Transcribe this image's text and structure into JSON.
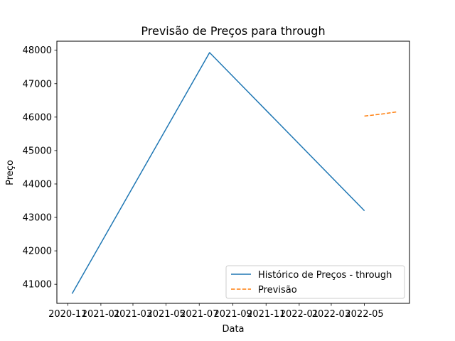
{
  "chart_data": {
    "type": "line",
    "title": "Previsão de Preços para through",
    "xlabel": "Data",
    "ylabel": "Preço",
    "x_is_date": true,
    "xlim": [
      "2020-10-12",
      "2022-07-23"
    ],
    "ylim": [
      40430,
      48270
    ],
    "x_ticks": [
      "2020-11-01",
      "2021-01-01",
      "2021-03-01",
      "2021-05-01",
      "2021-07-01",
      "2021-09-01",
      "2021-11-01",
      "2022-01-01",
      "2022-03-01",
      "2022-05-01"
    ],
    "x_tick_labels": [
      "2020-11",
      "2021-01",
      "2021-03",
      "2021-05",
      "2021-07",
      "2021-09",
      "2021-11",
      "2022-01",
      "2022-03",
      "2022-05"
    ],
    "y_ticks": [
      41000,
      42000,
      43000,
      44000,
      45000,
      46000,
      47000,
      48000
    ],
    "y_tick_labels": [
      "41000",
      "42000",
      "43000",
      "44000",
      "45000",
      "46000",
      "47000",
      "48000"
    ],
    "grid": false,
    "legend_position": "lower-right",
    "series": [
      {
        "name": "Histórico de Preços - through",
        "color": "#1f77b4",
        "dash": "solid",
        "x": [
          "2020-11-09",
          "2021-07-20",
          "2022-05-01"
        ],
        "y": [
          40720,
          47930,
          43200
        ]
      },
      {
        "name": "Previsão",
        "color": "#ff7f0e",
        "dash": "dashed",
        "x": [
          "2022-05-01",
          "2022-06-01",
          "2022-07-01"
        ],
        "y": [
          46030,
          46090,
          46160
        ]
      }
    ]
  }
}
